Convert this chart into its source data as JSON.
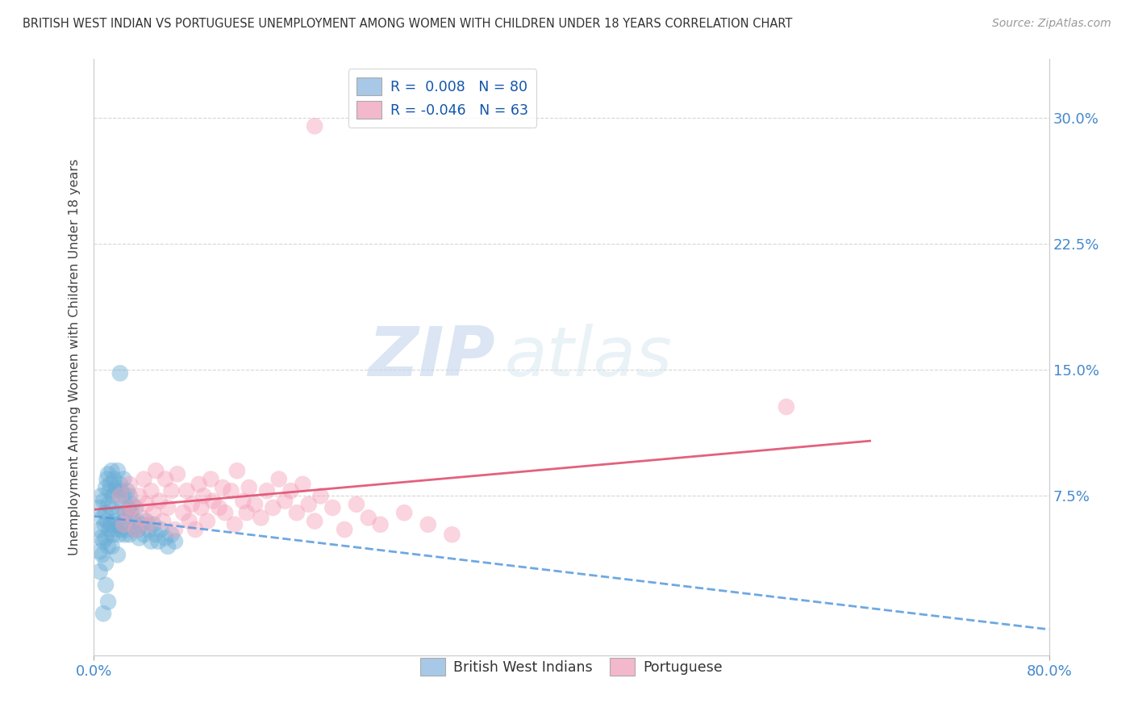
{
  "title": "BRITISH WEST INDIAN VS PORTUGUESE UNEMPLOYMENT AMONG WOMEN WITH CHILDREN UNDER 18 YEARS CORRELATION CHART",
  "source": "Source: ZipAtlas.com",
  "ylabel": "Unemployment Among Women with Children Under 18 years",
  "ytick_labels": [
    "7.5%",
    "15.0%",
    "22.5%",
    "30.0%"
  ],
  "ytick_values": [
    0.075,
    0.15,
    0.225,
    0.3
  ],
  "xlim": [
    0.0,
    0.8
  ],
  "ylim": [
    -0.02,
    0.335
  ],
  "watermark_zip": "ZIP",
  "watermark_atlas": "atlas",
  "bwi_color": "#6baed6",
  "port_color": "#f4a0b8",
  "bwi_trend_color": "#5599dd",
  "port_trend_color": "#e05070",
  "bwi_legend_color": "#a8c8e8",
  "port_legend_color": "#f4b8cc",
  "title_color": "#333333",
  "source_color": "#999999",
  "axis_label_color": "#444444",
  "tick_color": "#4488cc",
  "grid_color": "#cccccc",
  "bg_color": "#ffffff",
  "bwi_points_x": [
    0.005,
    0.005,
    0.005,
    0.005,
    0.006,
    0.006,
    0.007,
    0.007,
    0.008,
    0.008,
    0.009,
    0.01,
    0.01,
    0.01,
    0.01,
    0.01,
    0.011,
    0.011,
    0.012,
    0.012,
    0.012,
    0.013,
    0.013,
    0.014,
    0.014,
    0.015,
    0.015,
    0.015,
    0.016,
    0.016,
    0.017,
    0.017,
    0.018,
    0.018,
    0.019,
    0.019,
    0.02,
    0.02,
    0.02,
    0.021,
    0.021,
    0.022,
    0.022,
    0.023,
    0.023,
    0.024,
    0.025,
    0.025,
    0.026,
    0.026,
    0.027,
    0.028,
    0.028,
    0.029,
    0.03,
    0.03,
    0.031,
    0.032,
    0.033,
    0.034,
    0.035,
    0.036,
    0.037,
    0.038,
    0.04,
    0.042,
    0.044,
    0.046,
    0.048,
    0.05,
    0.052,
    0.054,
    0.056,
    0.06,
    0.062,
    0.065,
    0.068,
    0.022,
    0.012,
    0.008
  ],
  "bwi_points_y": [
    0.068,
    0.055,
    0.042,
    0.03,
    0.075,
    0.05,
    0.062,
    0.04,
    0.072,
    0.048,
    0.058,
    0.08,
    0.065,
    0.05,
    0.035,
    0.022,
    0.085,
    0.06,
    0.088,
    0.07,
    0.045,
    0.078,
    0.055,
    0.082,
    0.058,
    0.09,
    0.068,
    0.045,
    0.075,
    0.052,
    0.085,
    0.06,
    0.078,
    0.055,
    0.08,
    0.058,
    0.09,
    0.065,
    0.04,
    0.075,
    0.052,
    0.082,
    0.058,
    0.078,
    0.055,
    0.068,
    0.085,
    0.06,
    0.075,
    0.052,
    0.065,
    0.078,
    0.055,
    0.068,
    0.075,
    0.052,
    0.065,
    0.07,
    0.06,
    0.055,
    0.068,
    0.06,
    0.055,
    0.05,
    0.058,
    0.052,
    0.06,
    0.055,
    0.048,
    0.058,
    0.052,
    0.048,
    0.055,
    0.05,
    0.045,
    0.052,
    0.048,
    0.148,
    0.012,
    0.005
  ],
  "port_points_x": [
    0.022,
    0.025,
    0.028,
    0.03,
    0.032,
    0.035,
    0.038,
    0.04,
    0.042,
    0.044,
    0.046,
    0.048,
    0.05,
    0.052,
    0.055,
    0.058,
    0.06,
    0.062,
    0.065,
    0.068,
    0.07,
    0.075,
    0.078,
    0.08,
    0.082,
    0.085,
    0.088,
    0.09,
    0.092,
    0.095,
    0.098,
    0.1,
    0.105,
    0.108,
    0.11,
    0.115,
    0.118,
    0.12,
    0.125,
    0.128,
    0.13,
    0.135,
    0.14,
    0.145,
    0.15,
    0.155,
    0.16,
    0.165,
    0.17,
    0.175,
    0.18,
    0.185,
    0.19,
    0.2,
    0.21,
    0.22,
    0.23,
    0.24,
    0.26,
    0.28,
    0.3,
    0.58,
    0.185
  ],
  "port_points_y": [
    0.075,
    0.058,
    0.065,
    0.082,
    0.068,
    0.055,
    0.075,
    0.062,
    0.085,
    0.07,
    0.058,
    0.078,
    0.065,
    0.09,
    0.072,
    0.06,
    0.085,
    0.068,
    0.078,
    0.055,
    0.088,
    0.065,
    0.078,
    0.06,
    0.07,
    0.055,
    0.082,
    0.068,
    0.075,
    0.06,
    0.085,
    0.072,
    0.068,
    0.08,
    0.065,
    0.078,
    0.058,
    0.09,
    0.072,
    0.065,
    0.08,
    0.07,
    0.062,
    0.078,
    0.068,
    0.085,
    0.072,
    0.078,
    0.065,
    0.082,
    0.07,
    0.06,
    0.075,
    0.068,
    0.055,
    0.07,
    0.062,
    0.058,
    0.065,
    0.058,
    0.052,
    0.128,
    0.295
  ]
}
